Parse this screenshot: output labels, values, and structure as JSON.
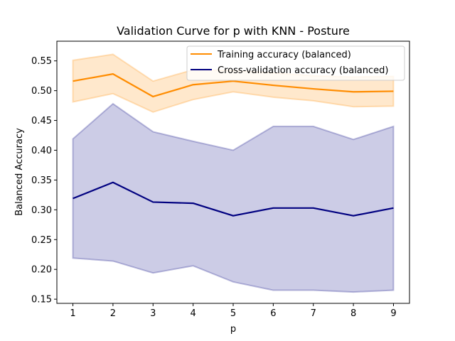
{
  "chart_data": {
    "type": "line",
    "title": "Validation Curve for p with KNN - Posture",
    "xlabel": "p",
    "ylabel": "Balanced Accuracy",
    "x": [
      1,
      2,
      3,
      4,
      5,
      6,
      7,
      8,
      9
    ],
    "xlim": [
      0.6,
      9.4
    ],
    "ylim": [
      0.143,
      0.583
    ],
    "xticks": [
      "1",
      "2",
      "3",
      "4",
      "5",
      "6",
      "7",
      "8",
      "9"
    ],
    "yticks": [
      "0.15",
      "0.20",
      "0.25",
      "0.30",
      "0.35",
      "0.40",
      "0.45",
      "0.50",
      "0.55"
    ],
    "grid": false,
    "legend_position": "top-right",
    "series": [
      {
        "name": "Training accuracy (balanced)",
        "color": "#ff8c00",
        "values": [
          0.516,
          0.528,
          0.49,
          0.51,
          0.516,
          0.509,
          0.503,
          0.498,
          0.499
        ],
        "band_upper": [
          0.551,
          0.561,
          0.516,
          0.535,
          0.534,
          0.53,
          0.525,
          0.523,
          0.524
        ],
        "band_lower": [
          0.481,
          0.495,
          0.464,
          0.485,
          0.498,
          0.489,
          0.483,
          0.473,
          0.474
        ]
      },
      {
        "name": "Cross-validation accuracy (balanced)",
        "color": "#000080",
        "values": [
          0.319,
          0.346,
          0.313,
          0.311,
          0.29,
          0.303,
          0.303,
          0.29,
          0.303
        ],
        "band_upper": [
          0.419,
          0.478,
          0.431,
          0.415,
          0.4,
          0.44,
          0.44,
          0.418,
          0.44
        ],
        "band_lower": [
          0.219,
          0.214,
          0.194,
          0.206,
          0.179,
          0.165,
          0.165,
          0.162,
          0.165
        ]
      }
    ]
  }
}
